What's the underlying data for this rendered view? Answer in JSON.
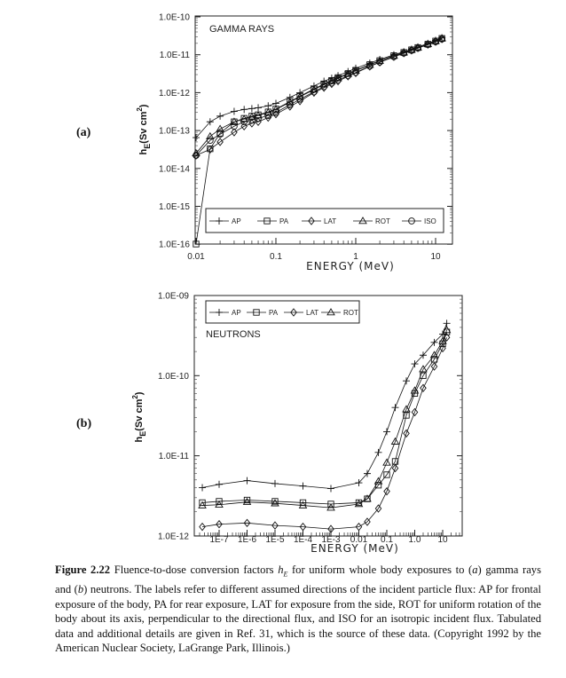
{
  "panels": {
    "a": "(a)",
    "b": "(b)"
  },
  "caption": {
    "label": "Figure 2.22",
    "t1": " Fluence-to-dose conversion factors ",
    "sym": "h",
    "sub": "E",
    "t2": " for uniform whole body exposures to (",
    "a": "a",
    "t3": ") gamma rays and (",
    "b": "b",
    "t4": ") neutrons. The labels refer to different assumed directions of the incident particle flux: AP for frontal exposure of the body, PA for rear exposure, LAT for exposure from the side, ROT for uniform rotation of the body about its axis, perpendicular to the directional flux, and ISO for an isotropic incident flux. Tabulated data and additional details are given in Ref. 31, which is the source of these data. (Copyright 1992 by the American Nuclear Society, LaGrange Park, Illinois.)"
  },
  "chart_data": [
    {
      "type": "line",
      "title": "GAMMA RAYS",
      "xlabel": "ENERGY (MeV)",
      "ylabel": {
        "symbol": "h",
        "sub": "E",
        "unit": "(Sv cm",
        "sup": "2",
        "close": ")"
      },
      "xscale": "log",
      "yscale": "log",
      "xlim": [
        0.01,
        14
      ],
      "ylim": [
        1e-16,
        1e-10
      ],
      "xticks": [
        "0.01",
        "0.1",
        "1",
        "10"
      ],
      "yticks": [
        "1.0E-10",
        "1.0E-11",
        "1.0E-12",
        "1.0E-13",
        "1.0E-14",
        "1.0E-15",
        "1.0E-16"
      ],
      "legend_position": "bottom",
      "x": [
        0.01,
        0.015,
        0.02,
        0.03,
        0.04,
        0.05,
        0.06,
        0.08,
        0.1,
        0.15,
        0.2,
        0.3,
        0.4,
        0.5,
        0.6,
        0.8,
        1,
        1.5,
        2,
        3,
        4,
        5,
        6,
        8,
        10,
        12
      ],
      "series": [
        {
          "name": "AP",
          "marker": "plus",
          "values": [
            6.5e-14,
            1.7e-13,
            2.4e-13,
            3.2e-13,
            3.6e-13,
            3.8e-13,
            4e-13,
            4.5e-13,
            5.2e-13,
            7.5e-13,
            1e-12,
            1.5e-12,
            2e-12,
            2.4e-12,
            2.8e-12,
            3.6e-12,
            4.4e-12,
            6e-12,
            7.5e-12,
            1e-11,
            1.2e-11,
            1.4e-11,
            1.6e-11,
            2e-11,
            2.4e-11,
            2.8e-11
          ]
        },
        {
          "name": "PA",
          "marker": "square",
          "values": [
            1e-16,
            3.3e-14,
            8.5e-14,
            1.7e-13,
            2.1e-13,
            2.4e-13,
            2.6e-13,
            3.1e-13,
            3.7e-13,
            5.8e-13,
            8e-13,
            1.25e-12,
            1.7e-12,
            2.1e-12,
            2.5e-12,
            3.2e-12,
            3.9e-12,
            5.5e-12,
            7e-12,
            9.5e-12,
            1.15e-11,
            1.35e-11,
            1.55e-11,
            1.9e-11,
            2.3e-11,
            2.7e-11
          ]
        },
        {
          "name": "LAT",
          "marker": "diamond",
          "values": [
            2.2e-14,
            3.2e-14,
            5e-14,
            9e-14,
            1.3e-13,
            1.55e-13,
            1.7e-13,
            2.2e-13,
            2.7e-13,
            4.3e-13,
            6e-13,
            1e-12,
            1.35e-12,
            1.7e-12,
            2e-12,
            2.7e-12,
            3.3e-12,
            4.9e-12,
            6.3e-12,
            8.8e-12,
            1.1e-11,
            1.3e-11,
            1.5e-11,
            1.85e-11,
            2.2e-11,
            2.6e-11
          ]
        },
        {
          "name": "ROT",
          "marker": "triangle",
          "values": [
            2.5e-14,
            7e-14,
            1.1e-13,
            1.7e-13,
            2e-13,
            2.3e-13,
            2.5e-13,
            3e-13,
            3.6e-13,
            5.6e-13,
            7.8e-13,
            1.2e-12,
            1.65e-12,
            2e-12,
            2.4e-12,
            3.1e-12,
            3.8e-12,
            5.4e-12,
            6.9e-12,
            9.4e-12,
            1.15e-11,
            1.35e-11,
            1.55e-11,
            1.9e-11,
            2.3e-11,
            2.7e-11
          ]
        },
        {
          "name": "ISO",
          "marker": "circle",
          "values": [
            2.2e-14,
            5.5e-14,
            8e-14,
            1.3e-13,
            1.7e-13,
            1.9e-13,
            2.1e-13,
            2.5e-13,
            3e-13,
            4.8e-13,
            6.7e-13,
            1.05e-12,
            1.45e-12,
            1.8e-12,
            2.15e-12,
            2.8e-12,
            3.4e-12,
            5e-12,
            6.4e-12,
            8.9e-12,
            1.1e-11,
            1.3e-11,
            1.5e-11,
            1.85e-11,
            2.2e-11,
            2.6e-11
          ]
        }
      ]
    },
    {
      "type": "line",
      "title": "NEUTRONS",
      "xlabel": "ENERGY (MeV)",
      "ylabel": {
        "symbol": "h",
        "sub": "E",
        "unit": "(Sv cm",
        "sup": "2",
        "close": ")"
      },
      "xscale": "log",
      "yscale": "log",
      "xlim": [
        1.25e-08,
        14
      ],
      "ylim": [
        1e-12,
        1e-09
      ],
      "xticks": [
        "1E-7",
        "1E-6",
        "1E-5",
        "1E-4",
        "1E-3",
        "0.01",
        "0.1",
        "1.0",
        "10"
      ],
      "yticks": [
        "1.0E-09",
        "1.0E-10",
        "1.0E-11",
        "1.0E-12"
      ],
      "legend_position": "top-left",
      "x": [
        2.5e-08,
        1e-07,
        1e-06,
        1e-05,
        0.0001,
        0.001,
        0.01,
        0.02,
        0.05,
        0.1,
        0.2,
        0.5,
        1,
        2,
        5,
        10,
        14
      ],
      "series": [
        {
          "name": "AP",
          "marker": "plus",
          "values": [
            4e-12,
            4.4e-12,
            4.9e-12,
            4.5e-12,
            4.2e-12,
            3.9e-12,
            4.6e-12,
            6e-12,
            1.1e-11,
            2e-11,
            4e-11,
            8.6e-11,
            1.4e-10,
            1.8e-10,
            2.6e-10,
            3.3e-10,
            4.5e-10
          ]
        },
        {
          "name": "PA",
          "marker": "square",
          "values": [
            2.6e-12,
            2.7e-12,
            2.8e-12,
            2.7e-12,
            2.6e-12,
            2.5e-12,
            2.6e-12,
            2.9e-12,
            4.3e-12,
            5.8e-12,
            8.5e-12,
            3.2e-11,
            6e-11,
            1e-10,
            1.6e-10,
            2.5e-10,
            3.5e-10
          ]
        },
        {
          "name": "LAT",
          "marker": "diamond",
          "values": [
            1.3e-12,
            1.4e-12,
            1.45e-12,
            1.35e-12,
            1.3e-12,
            1.22e-12,
            1.3e-12,
            1.5e-12,
            2.2e-12,
            3.6e-12,
            7e-12,
            1.9e-11,
            3.5e-11,
            7e-11,
            1.3e-10,
            2.2e-10,
            3e-10
          ]
        },
        {
          "name": "ROT",
          "marker": "triangle",
          "values": [
            2.4e-12,
            2.45e-12,
            2.65e-12,
            2.55e-12,
            2.4e-12,
            2.25e-12,
            2.5e-12,
            2.9e-12,
            4.8e-12,
            8.2e-12,
            1.5e-11,
            3.8e-11,
            6.5e-11,
            1.2e-10,
            1.8e-10,
            2.7e-10,
            3.7e-10
          ]
        }
      ]
    }
  ]
}
